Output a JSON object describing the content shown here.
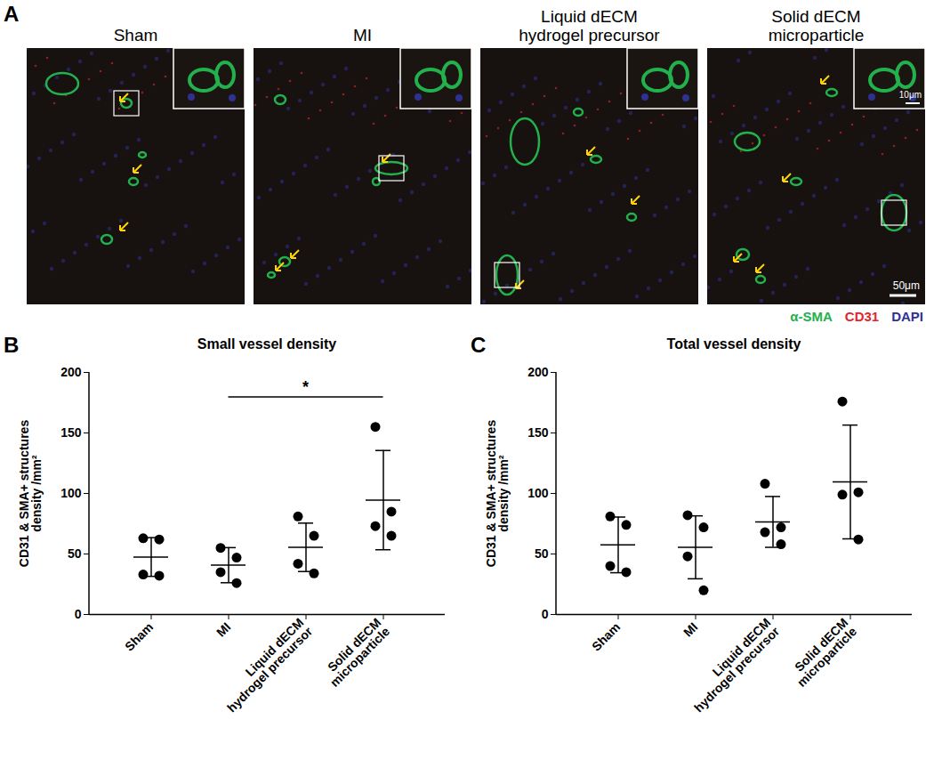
{
  "panel_a": {
    "label": "A",
    "images": [
      {
        "title": "Sham"
      },
      {
        "title": "MI"
      },
      {
        "title": "Liquid dECM\nhydrogel precursor"
      },
      {
        "title": "Solid dECM\nmicroparticle"
      }
    ],
    "stains": [
      {
        "name": "α-SMA",
        "color": "#22b14c"
      },
      {
        "name": "CD31",
        "color": "#e3262b"
      },
      {
        "name": "DAPI",
        "color": "#2e3192"
      }
    ],
    "scale_bars": {
      "inset": "10μm",
      "image": "50μm"
    }
  },
  "chart_data": [
    {
      "panel": "B",
      "type": "scatter",
      "title": "Small vessel density",
      "y_label": "CD31 & SMA+ structures\ndensity /mm²",
      "categories": [
        "Sham",
        "MI",
        "Liquid dECM\nhydrogel precursor",
        "Solid dECM\nmicroparticle"
      ],
      "points": [
        [
          63,
          62,
          33,
          32
        ],
        [
          55,
          47,
          35,
          26
        ],
        [
          81,
          65,
          42,
          34
        ],
        [
          155,
          85,
          73,
          65
        ]
      ],
      "mean": [
        47.5,
        40.75,
        55.5,
        94.5
      ],
      "sd": [
        16,
        14.5,
        20,
        41
      ],
      "color": "#000000",
      "ylim": [
        0,
        200
      ],
      "yticks": [
        0,
        50,
        100,
        150,
        200
      ],
      "grid": false,
      "significance": {
        "text": "*",
        "from": "MI",
        "to": "Solid dECM\nmicroparticle"
      }
    },
    {
      "panel": "C",
      "type": "scatter",
      "title": "Total vessel density",
      "y_label": "CD31 & SMA+ structures\ndensity /mm²",
      "categories": [
        "Sham",
        "MI",
        "Liquid dECM\nhydrogel precursor",
        "Solid dECM\nmicroparticle"
      ],
      "points": [
        [
          81,
          74,
          40,
          35
        ],
        [
          82,
          72,
          48,
          20
        ],
        [
          108,
          72,
          68,
          58
        ],
        [
          176,
          101,
          99,
          62
        ]
      ],
      "mean": [
        57.5,
        55.5,
        76.5,
        109.5
      ],
      "sd": [
        23,
        26,
        21,
        47
      ],
      "color": "#000000",
      "ylim": [
        0,
        200
      ],
      "yticks": [
        0,
        50,
        100,
        150,
        200
      ],
      "grid": false
    }
  ]
}
